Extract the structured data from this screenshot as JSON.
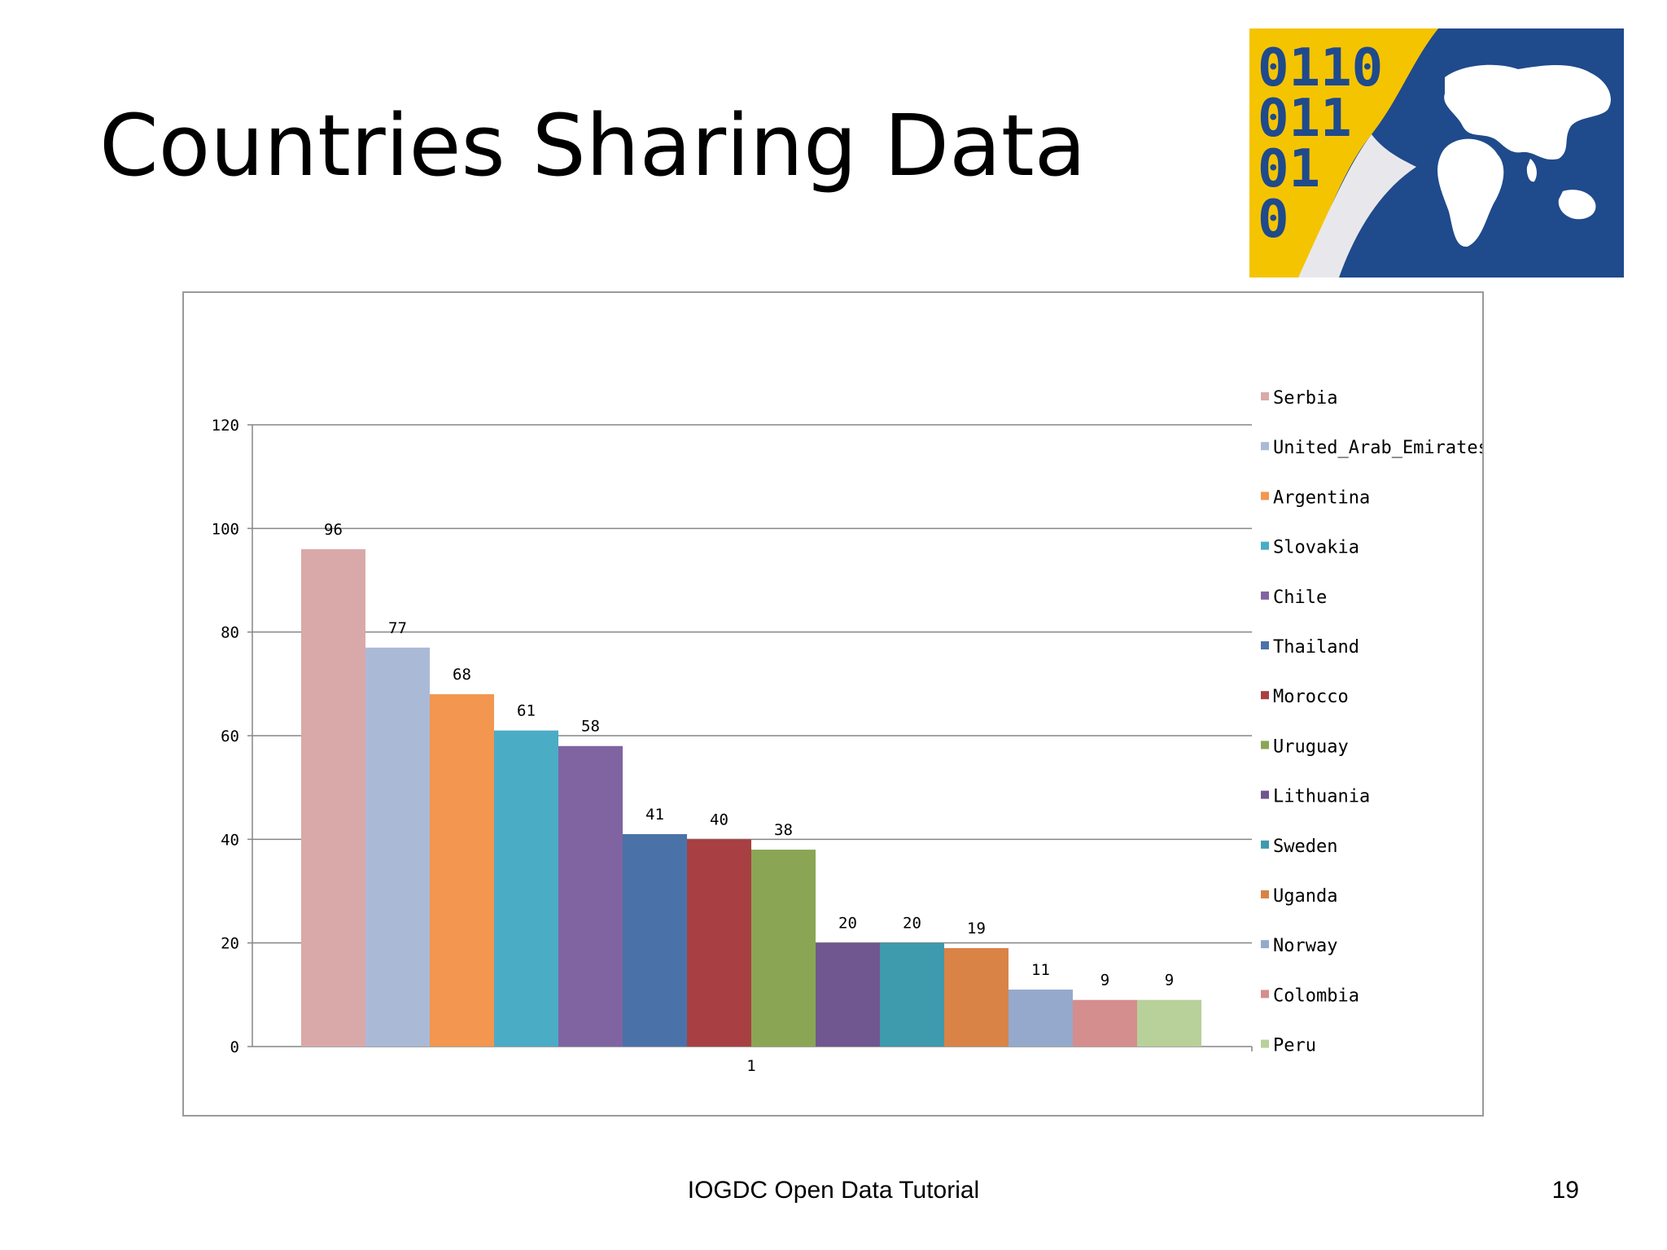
{
  "slide": {
    "title": "Countries Sharing Data",
    "footer": "IOGDC Open Data Tutorial",
    "page_number": "19"
  },
  "logo": {
    "digits": [
      "0110",
      "011",
      "01",
      "0"
    ],
    "colors": {
      "yellow": "#f5c400",
      "blue": "#1f4a8c",
      "land": "#ffffff"
    }
  },
  "chart_data": {
    "type": "bar",
    "title": "",
    "xlabel": "",
    "ylabel": "",
    "categories": [
      "1"
    ],
    "ylim": [
      0,
      120
    ],
    "yticks": [
      0,
      20,
      40,
      60,
      80,
      100,
      120
    ],
    "grid": true,
    "legend_position": "right",
    "series": [
      {
        "name": "Serbia",
        "values": [
          96
        ],
        "color": "#d9a9a9"
      },
      {
        "name": "United_Arab_Emirates",
        "values": [
          77
        ],
        "color": "#aabad6"
      },
      {
        "name": "Argentina",
        "values": [
          68
        ],
        "color": "#f29650"
      },
      {
        "name": "Slovakia",
        "values": [
          61
        ],
        "color": "#4bacc6"
      },
      {
        "name": "Chile",
        "values": [
          58
        ],
        "color": "#8064a2"
      },
      {
        "name": "Thailand",
        "values": [
          41
        ],
        "color": "#4a72a8"
      },
      {
        "name": "Morocco",
        "values": [
          40
        ],
        "color": "#a84043"
      },
      {
        "name": "Uruguay",
        "values": [
          38
        ],
        "color": "#8aa654"
      },
      {
        "name": "Lithuania",
        "values": [
          20
        ],
        "color": "#70578f"
      },
      {
        "name": "Sweden",
        "values": [
          20
        ],
        "color": "#3e9aad"
      },
      {
        "name": "Uganda",
        "values": [
          19
        ],
        "color": "#d98347"
      },
      {
        "name": "Norway",
        "values": [
          11
        ],
        "color": "#95a9cc"
      },
      {
        "name": "Colombia",
        "values": [
          9
        ],
        "color": "#d48e8e"
      },
      {
        "name": "Peru",
        "values": [
          9
        ],
        "color": "#b8d09a"
      }
    ]
  }
}
